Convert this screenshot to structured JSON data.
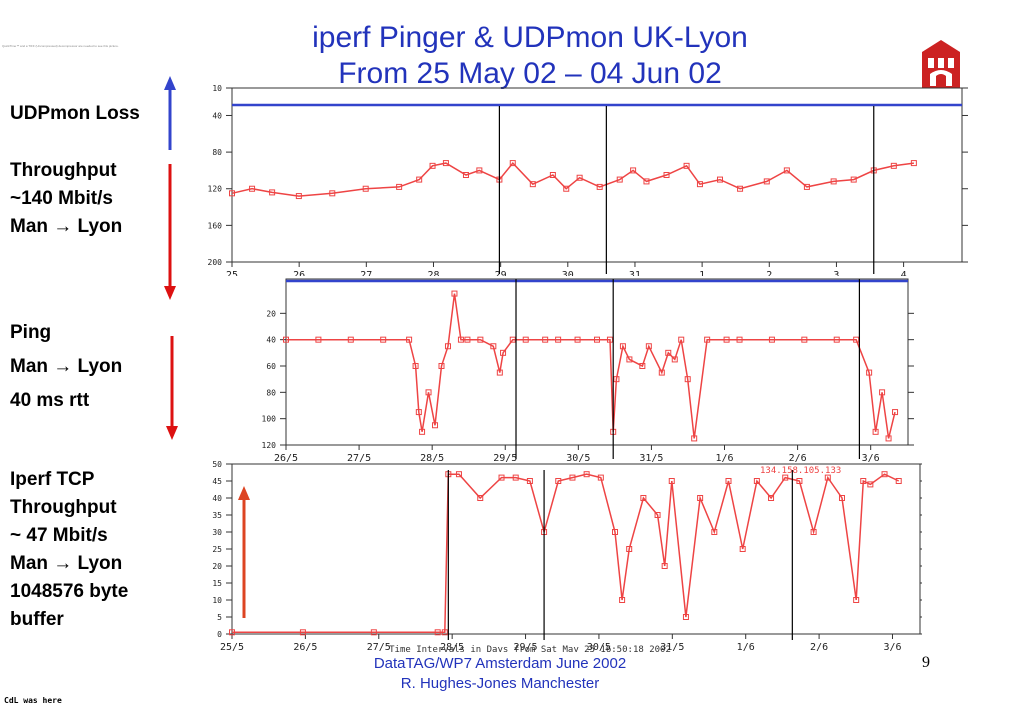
{
  "slide": {
    "title_line1": "iperf Pinger & UDPmon  UK-Lyon",
    "title_line2": "From 25 May 02 – 04 Jun 02",
    "footer_line1": "DataTAG/WP7 Amsterdam June  2002",
    "footer_line2": "R. Hughes-Jones  Manchester",
    "page_number": "9",
    "corner_note": "CdL was here",
    "quicktime_note": "QuickTime™ and a TIFF (Uncompressed) decompressor are needed to see this picture.",
    "logo_icon": "university-crest-icon",
    "colors": {
      "title": "#2233bb",
      "series": "#ee4444",
      "loss": "#3344cc",
      "marker_line": "#000000"
    }
  },
  "labels": {
    "udpmon_loss": "UDPmon Loss",
    "throughput": [
      "Throughput",
      "~140 Mbit/s",
      "Man → Lyon"
    ],
    "ping": [
      "Ping",
      "Man → Lyon",
      "40 ms rtt"
    ],
    "iperf": [
      "Iperf TCP",
      "Throughput",
      "~ 47 Mbit/s",
      "Man → Lyon",
      "1048576 byte",
      "buffer"
    ]
  },
  "arrows": [
    {
      "name": "udpmon-loss-arrow",
      "color": "#3344cc",
      "direction": "up"
    },
    {
      "name": "throughput-arrow",
      "color": "#dd1111",
      "direction": "down"
    },
    {
      "name": "ping-arrow",
      "color": "#dd1111",
      "direction": "down"
    },
    {
      "name": "iperf-arrow",
      "color": "#dd4422",
      "direction": "up"
    }
  ],
  "chart_data": [
    {
      "type": "line",
      "name": "udpmon",
      "x_tick_labels": [
        "25",
        "26",
        "27",
        "28",
        "29",
        "30",
        "31",
        "1",
        "2",
        "3",
        "4"
      ],
      "y_tick_labels": [
        "10",
        "40",
        "80",
        "120",
        "160",
        "200"
      ],
      "ylim": [
        200,
        10
      ],
      "loss_series": {
        "level": 10
      },
      "series": [
        {
          "x": [
            0,
            0.3,
            0.6,
            1.0,
            1.5,
            2.0,
            2.5,
            2.8,
            3.0,
            3.2,
            3.5,
            3.7,
            4.0,
            4.2,
            4.5,
            4.8,
            5.0,
            5.2,
            5.5,
            5.8,
            6.0,
            6.2,
            6.5,
            6.8,
            7.0,
            7.3,
            7.6,
            8.0,
            8.3,
            8.6,
            9.0,
            9.3,
            9.6,
            9.9,
            10.2
          ],
          "y": [
            125,
            120,
            124,
            128,
            125,
            120,
            118,
            110,
            95,
            92,
            105,
            100,
            110,
            92,
            115,
            105,
            120,
            108,
            118,
            110,
            100,
            112,
            105,
            95,
            115,
            110,
            120,
            112,
            100,
            118,
            112,
            110,
            100,
            95,
            92
          ]
        }
      ],
      "vertical_markers": [
        4.0,
        5.6,
        9.6
      ]
    },
    {
      "type": "line",
      "name": "ping",
      "x_tick_labels": [
        "26/5",
        "27/5",
        "28/5",
        "29/5",
        "30/5",
        "31/5",
        "1/6",
        "2/6",
        "3/6"
      ],
      "y_tick_labels": [
        "20",
        "40",
        "60",
        "80",
        "100",
        "120"
      ],
      "ylim": [
        120,
        0
      ],
      "loss_series": {
        "level": 0
      },
      "series": [
        {
          "x": [
            0,
            0.5,
            1.0,
            1.5,
            1.9,
            2.0,
            2.05,
            2.1,
            2.2,
            2.3,
            2.4,
            2.5,
            2.6,
            2.7,
            2.8,
            3.0,
            3.2,
            3.3,
            3.35,
            3.5,
            3.7,
            4.0,
            4.2,
            4.5,
            4.8,
            5.0,
            5.05,
            5.1,
            5.2,
            5.3,
            5.5,
            5.6,
            5.8,
            5.9,
            6.0,
            6.1,
            6.2,
            6.3,
            6.5,
            6.8,
            7.0,
            7.5,
            8.0,
            8.5,
            8.8,
            9.0,
            9.1,
            9.2,
            9.3,
            9.4
          ],
          "y": [
            40,
            40,
            40,
            40,
            40,
            60,
            95,
            110,
            80,
            105,
            60,
            45,
            5,
            40,
            40,
            40,
            45,
            65,
            50,
            40,
            40,
            40,
            40,
            40,
            40,
            40,
            110,
            70,
            45,
            55,
            60,
            45,
            65,
            50,
            55,
            40,
            70,
            115,
            40,
            40,
            40,
            40,
            40,
            40,
            40,
            65,
            110,
            80,
            115,
            95
          ]
        }
      ],
      "vertical_markers": [
        3.55,
        5.05,
        8.85
      ]
    },
    {
      "type": "line",
      "name": "iperf",
      "x_tick_labels": [
        "25/5",
        "26/5",
        "27/5",
        "28/5",
        "29/5",
        "30/5",
        "31/5",
        "1/6",
        "2/6",
        "3/6"
      ],
      "y_tick_labels": [
        "0",
        "5",
        "10",
        "15",
        "20",
        "25",
        "30",
        "35",
        "40",
        "45",
        "50"
      ],
      "ylim": [
        0,
        50
      ],
      "time_label": "Time Intervals in Days from Sat May 25 16:50:18 2002",
      "legend_label": "134.158.105.133",
      "series": [
        {
          "x": [
            0,
            1.0,
            2.0,
            2.9,
            3.0,
            3.05,
            3.2,
            3.5,
            3.8,
            4.0,
            4.2,
            4.4,
            4.6,
            4.8,
            5.0,
            5.2,
            5.4,
            5.5,
            5.6,
            5.8,
            6.0,
            6.1,
            6.2,
            6.4,
            6.6,
            6.8,
            7.0,
            7.2,
            7.4,
            7.6,
            7.8,
            8.0,
            8.2,
            8.4,
            8.6,
            8.8,
            8.9,
            9.0,
            9.2,
            9.4
          ],
          "y": [
            0.5,
            0.5,
            0.5,
            0.5,
            0.5,
            47,
            47,
            40,
            46,
            46,
            45,
            30,
            45,
            46,
            47,
            46,
            30,
            10,
            25,
            40,
            35,
            20,
            45,
            5,
            40,
            30,
            45,
            25,
            45,
            40,
            46,
            45,
            30,
            46,
            40,
            10,
            45,
            44,
            47,
            45
          ]
        }
      ],
      "vertical_markers": [
        3.05,
        4.4,
        7.9
      ]
    }
  ]
}
